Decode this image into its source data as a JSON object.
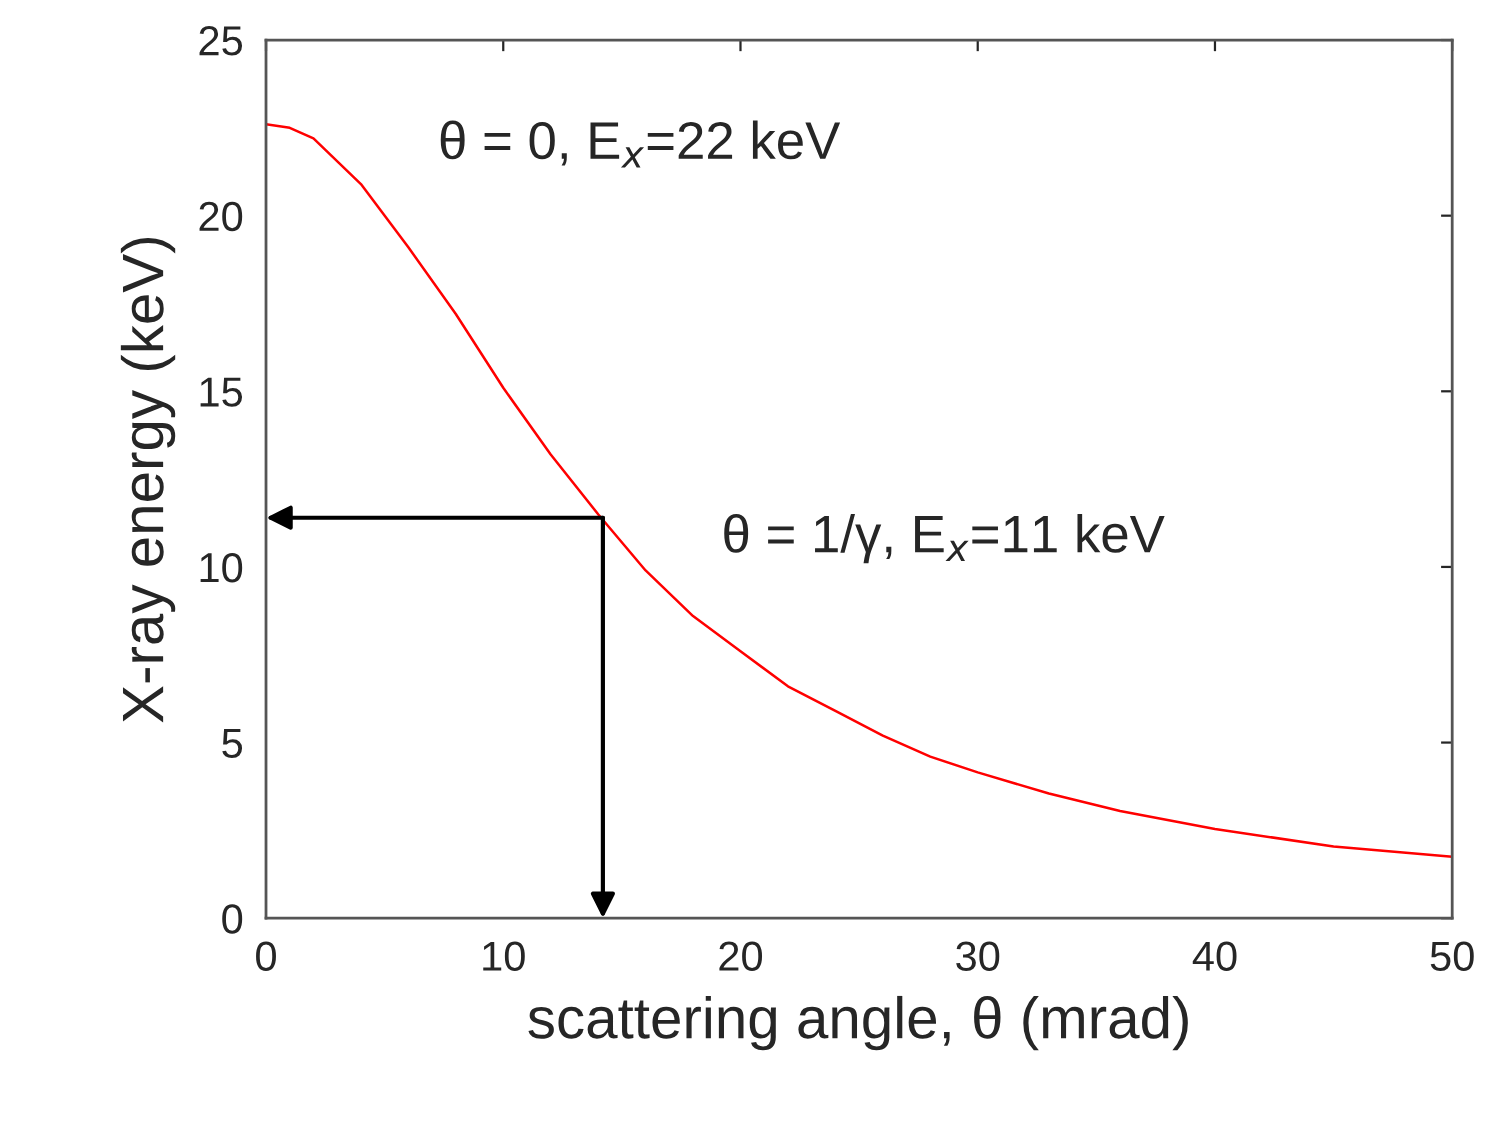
{
  "chart_data": {
    "type": "line",
    "xlabel": "scattering angle, θ (mrad)",
    "ylabel": "X-ray energy (keV)",
    "x": [
      0,
      1,
      2,
      4,
      6,
      8,
      10,
      12,
      14,
      16,
      18,
      20,
      22,
      24,
      26,
      28,
      30,
      33,
      36,
      40,
      45,
      50
    ],
    "series": [
      {
        "color": "#ff0000",
        "values": [
          22.6,
          22.5,
          22.2,
          20.9,
          19.1,
          17.2,
          15.1,
          13.2,
          11.5,
          9.9,
          8.6,
          7.6,
          6.6,
          5.9,
          5.2,
          4.6,
          4.15,
          3.55,
          3.05,
          2.54,
          2.04,
          1.75
        ]
      }
    ],
    "xlim": [
      0,
      50
    ],
    "xticks": [
      0,
      10,
      20,
      30,
      40,
      50
    ],
    "ylim": [
      0,
      25
    ],
    "yticks": [
      0,
      5,
      10,
      15,
      20,
      25
    ],
    "annotations": [
      "θ = 0, E$_{x}$=22 keV",
      {
        "text": "θ = 1/γ, E$_{x}$=11 keV",
        "x": 14.2,
        "y": 11.4
      }
    ],
    "grid": false,
    "legend": false,
    "marker": "none",
    "line_style": "solid"
  }
}
